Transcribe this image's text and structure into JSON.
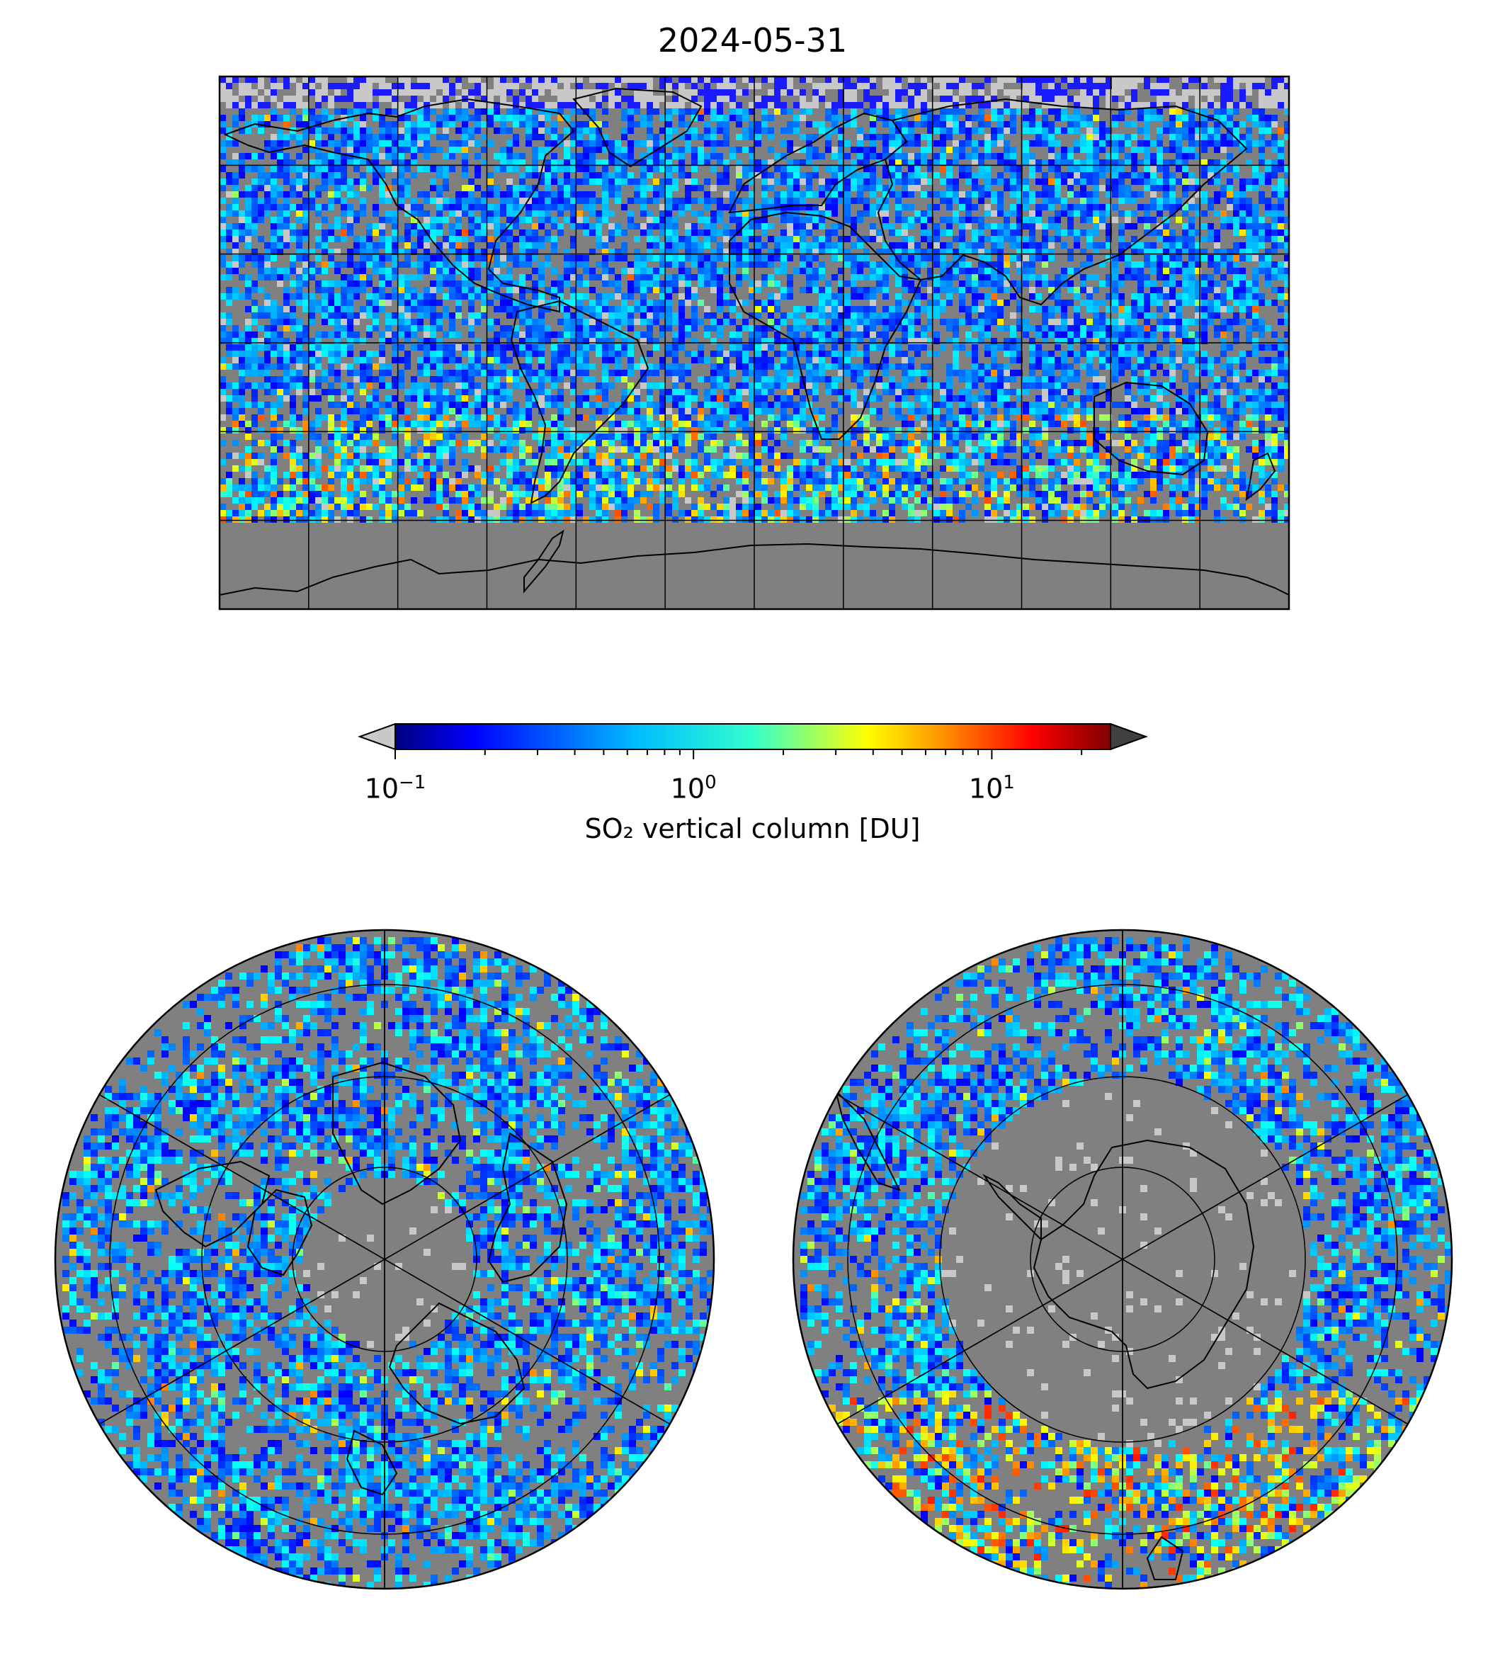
{
  "title": "2024-05-31",
  "colorbar": {
    "label": "SO₂ vertical column [DU]",
    "scale": "log",
    "range": [
      0.1,
      25
    ],
    "extend": "both",
    "under_color": "#c8c8c8",
    "over_color": "#404040",
    "colormap": "jet",
    "ticks": [
      {
        "value": 0.1,
        "base": "10",
        "exp": "−1"
      },
      {
        "value": 1,
        "base": "10",
        "exp": "0"
      },
      {
        "value": 10,
        "base": "10",
        "exp": "1"
      }
    ]
  },
  "maps": {
    "global": {
      "projection": "equirectangular",
      "gridlines": true,
      "background": "#808080",
      "lon_range": [
        -180,
        180
      ],
      "lat_range": [
        -90,
        90
      ]
    },
    "north_polar": {
      "projection": "north-polar-stereographic",
      "gridlines": true,
      "background": "#808080"
    },
    "south_polar": {
      "projection": "south-polar-stereographic",
      "gridlines": true,
      "background": "#808080"
    }
  },
  "colors": {
    "no_data": "#808080",
    "coastline": "#000000",
    "gridline": "#000000"
  }
}
